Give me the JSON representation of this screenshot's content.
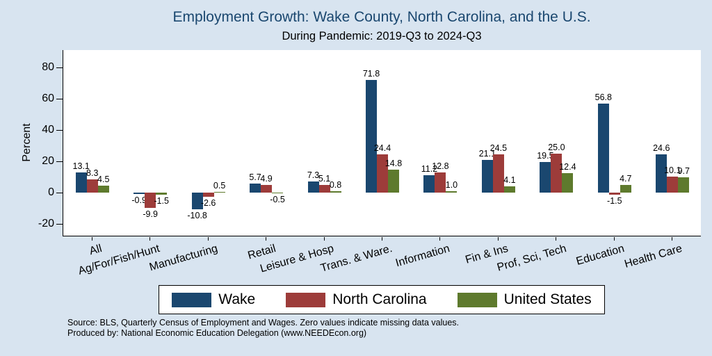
{
  "chart_data": {
    "type": "bar",
    "title": "Employment Growth: Wake County, North Carolina, and the U.S.",
    "subtitle": "During Pandemic: 2019-Q3 to 2024-Q3",
    "ylabel": "Percent",
    "ylim": [
      -28,
      91
    ],
    "yticks": [
      -20,
      0,
      20,
      40,
      60,
      80
    ],
    "grid": false,
    "legend_position": "bottom",
    "value_labels": true,
    "categories": [
      "All",
      "Ag/For/Fish/Hunt",
      "Manufacturing",
      "Retail",
      "Leisure & Hosp",
      "Trans. & Ware.",
      "Information",
      "Fin & Ins",
      "Prof, Sci, Tech",
      "Education",
      "Health Care"
    ],
    "series": [
      {
        "name": "Wake",
        "color": "#1a476f",
        "values": [
          13.1,
          -0.9,
          -10.8,
          5.7,
          7.3,
          71.8,
          11.2,
          21.1,
          19.5,
          56.8,
          24.6
        ]
      },
      {
        "name": "North Carolina",
        "color": "#9d3c3a",
        "values": [
          8.3,
          -9.9,
          -2.6,
          4.9,
          5.1,
          24.4,
          12.8,
          24.5,
          25.0,
          -1.5,
          10.1
        ]
      },
      {
        "name": "United States",
        "color": "#5e7a2d",
        "values": [
          4.5,
          -1.5,
          0.5,
          -0.5,
          0.8,
          14.8,
          1.0,
          4.1,
          12.4,
          4.7,
          9.7
        ]
      }
    ]
  },
  "colors": {
    "background": "#d8e4f0",
    "plot_background": "#ffffff",
    "title_text": "#1a476f",
    "wake": "#1a476f",
    "north_carolina": "#9d3c3a",
    "united_states": "#5e7a2d"
  },
  "footer": {
    "source_line1": "Source: BLS, Quarterly Census of Employment and Wages. Zero values indicate missing data values.",
    "source_line2": "Produced by: National Economic Education Delegation (www.NEEDEcon.org)"
  }
}
